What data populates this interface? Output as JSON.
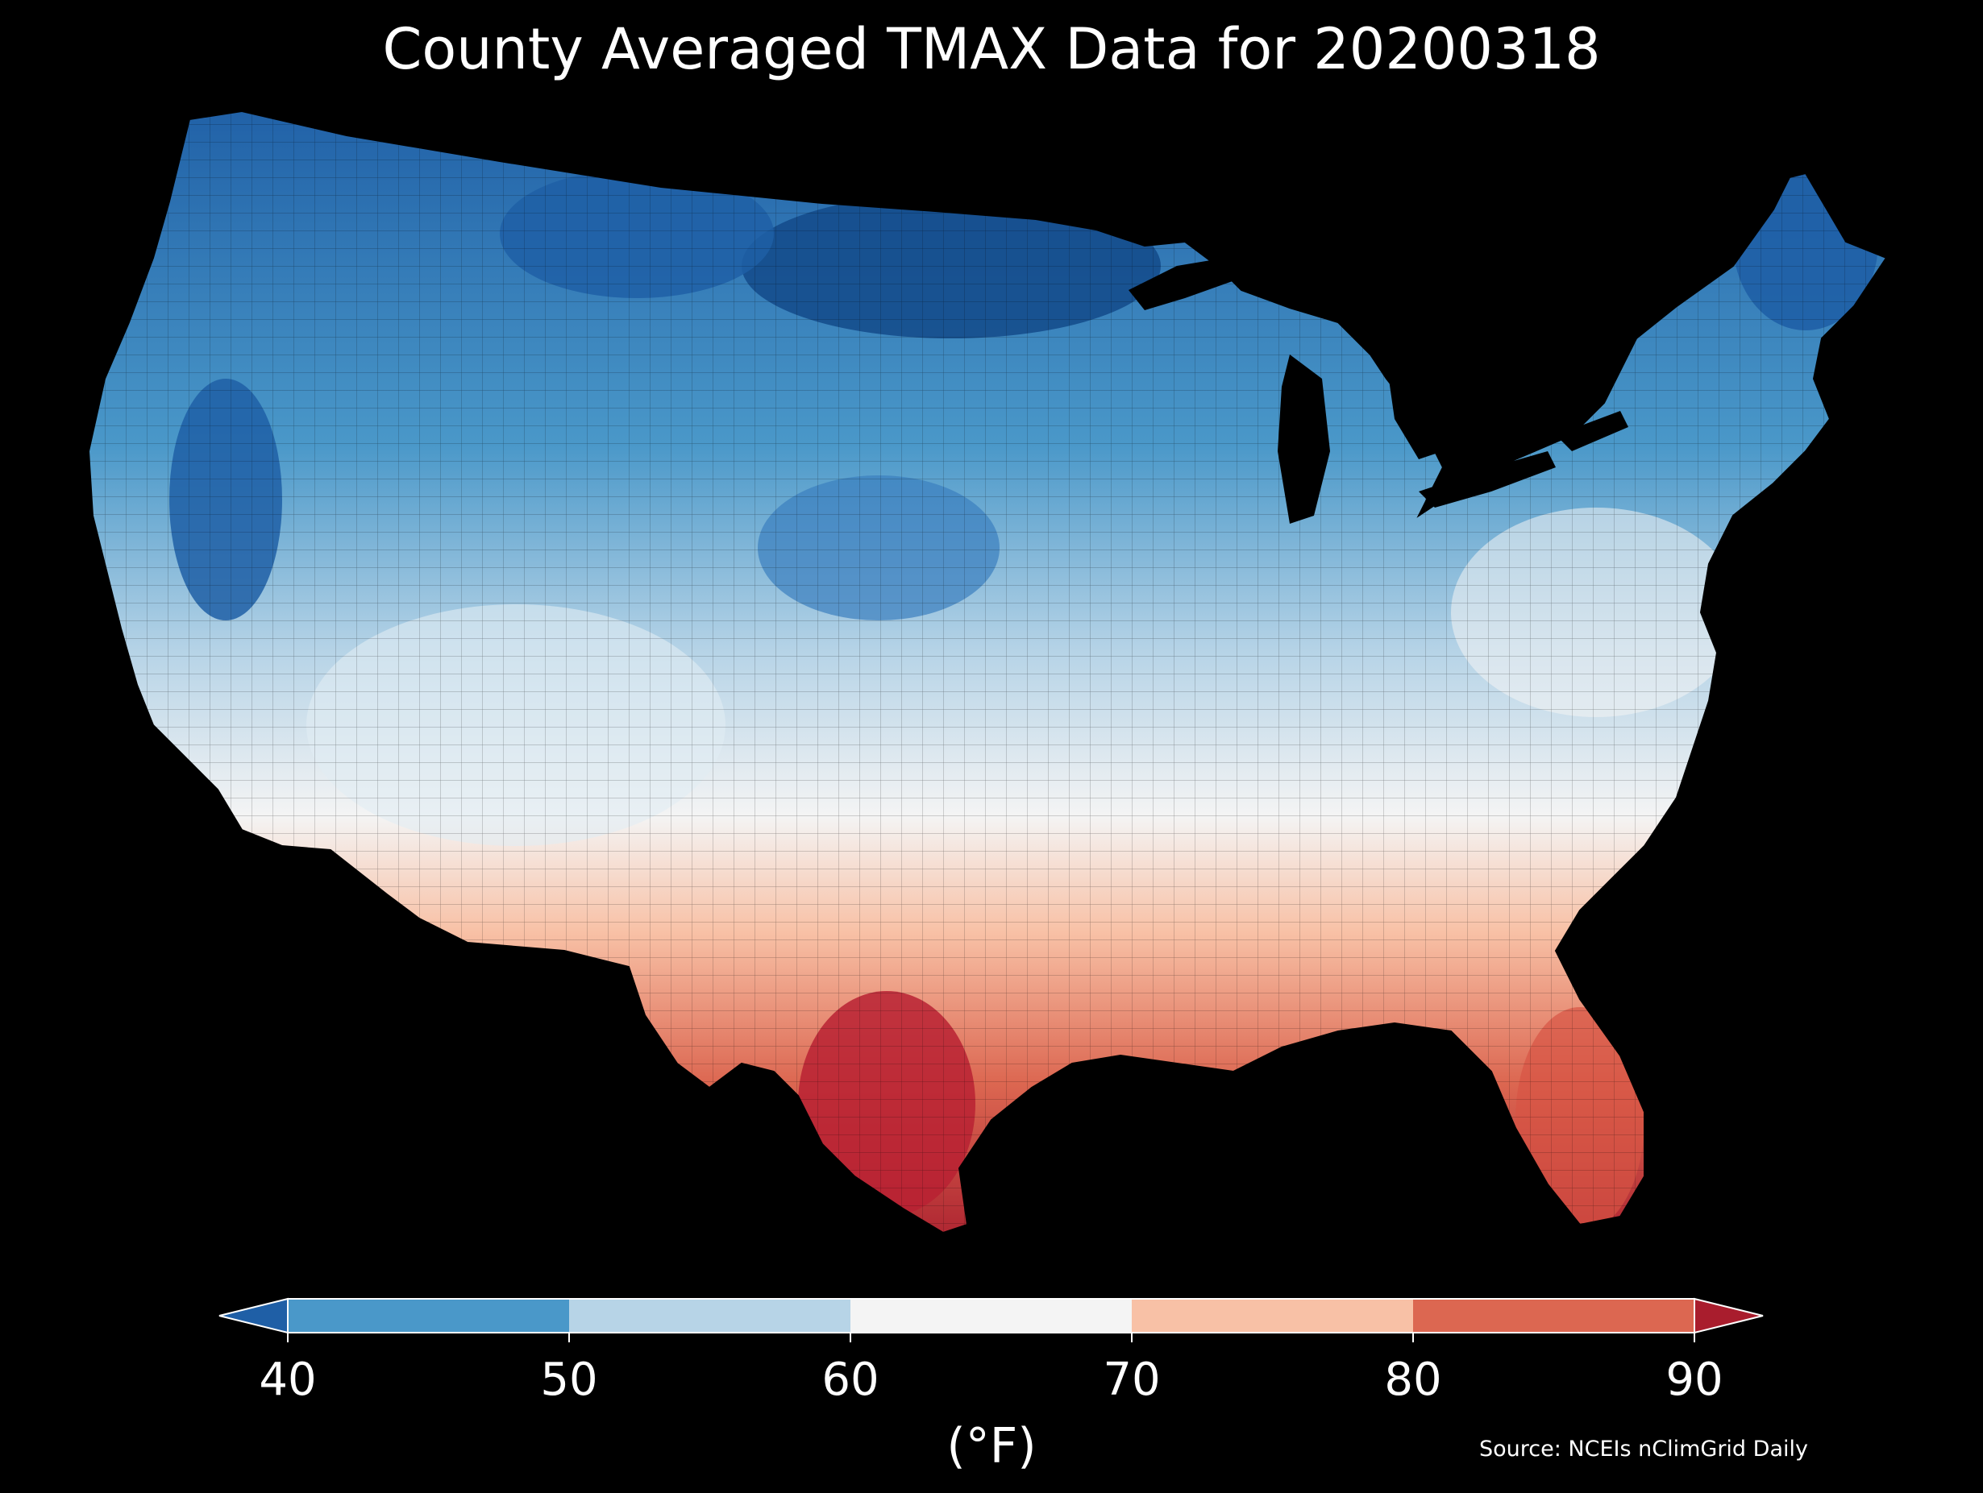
{
  "title": "County Averaged TMAX Data for 20200318",
  "colorbar": {
    "unit_label": "(°F)",
    "ticks": [
      "40",
      "50",
      "60",
      "70",
      "80",
      "90"
    ],
    "bins": [
      {
        "range": [
          40,
          50
        ],
        "color": "#4a98c9"
      },
      {
        "range": [
          50,
          60
        ],
        "color": "#b7d4e7"
      },
      {
        "range": [
          60,
          70
        ],
        "color": "#f4f4f4"
      },
      {
        "range": [
          70,
          80
        ],
        "color": "#f8c1a6"
      },
      {
        "range": [
          80,
          90
        ],
        "color": "#dc6751"
      }
    ],
    "under_color": "#1f5fa6",
    "over_color": "#a91d2d"
  },
  "source": "Source: NCEIs nClimGrid Daily",
  "map": {
    "region": "Contiguous United States",
    "background": "#000000",
    "pattern": "cold north (deep blue ~35-45°F in northern plains, Maine, Nevada), warm south (70-90°F in Texas, Gulf coast, Florida)"
  }
}
